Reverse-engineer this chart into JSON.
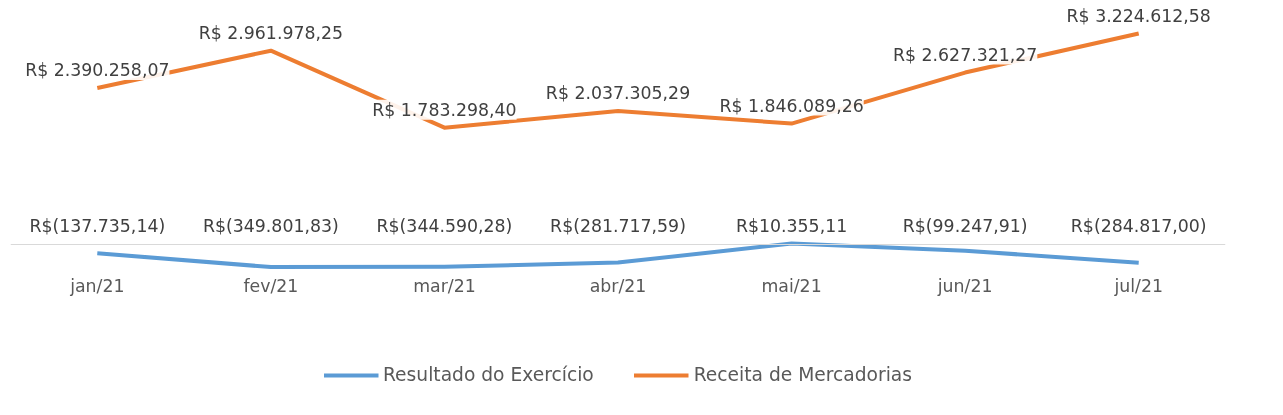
{
  "chart_data": {
    "type": "line",
    "categories": [
      "jan/21",
      "fev/21",
      "mar/21",
      "abr/21",
      "mai/21",
      "jun/21",
      "jul/21"
    ],
    "tick_labels": "x",
    "grid": false,
    "legend": "bottom",
    "marker": "none",
    "line_style": "solid",
    "series": [
      {
        "name": "Resultado do Exercício",
        "color": "#5b9bd5",
        "values": [
          -137735.14,
          -349801.83,
          -344590.28,
          -281717.59,
          10355.11,
          -99247.91,
          -284817.0
        ],
        "value_labels": [
          "R$(137.735,14)",
          "R$(349.801,83)",
          "R$(344.590,28)",
          "R$(281.717,59)",
          "R$10.355,11",
          "R$(99.247,91)",
          "R$(284.817,00)"
        ]
      },
      {
        "name": "Receita de Mercadorias",
        "color": "#ed7d31",
        "values": [
          2390258.07,
          2961978.25,
          1783298.4,
          2037305.29,
          1846089.26,
          2627321.27,
          3224612.58
        ],
        "value_labels": [
          "R$ 2.390.258,07",
          "R$ 2.961.978,25",
          "R$ 1.783.298,40",
          "R$ 2.037.305,29",
          "R$ 1.846.089,26",
          "R$ 2.627.321,27",
          "R$ 3.224.612,58"
        ]
      }
    ]
  }
}
